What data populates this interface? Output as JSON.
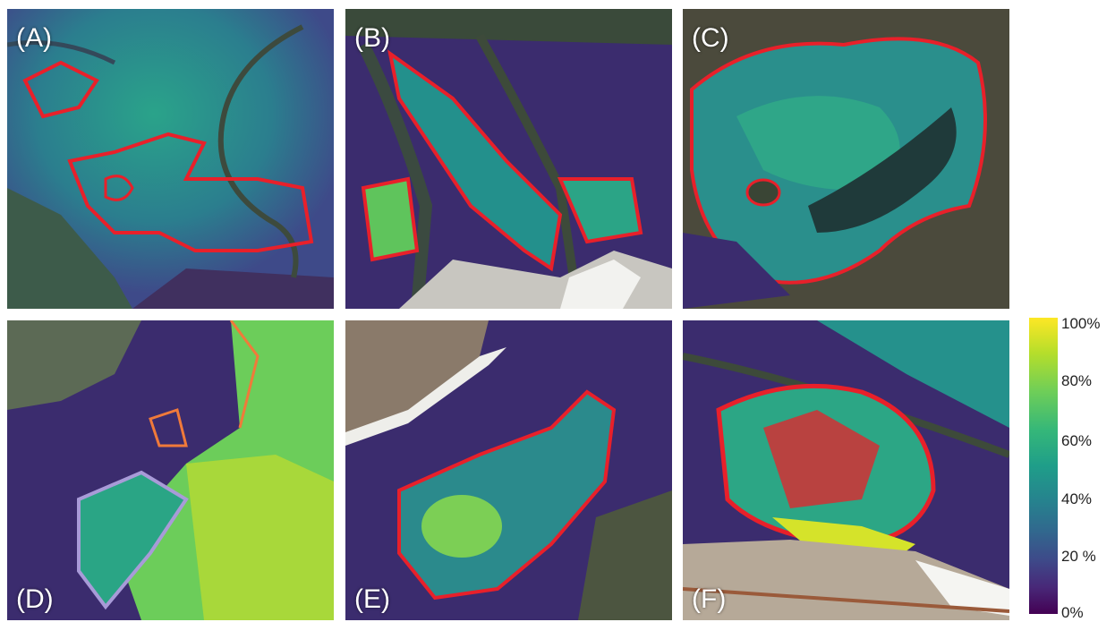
{
  "panels": [
    {
      "label": "(A)"
    },
    {
      "label": "(B)"
    },
    {
      "label": "(C)"
    },
    {
      "label": "(D)"
    },
    {
      "label": "(E)"
    },
    {
      "label": "(F)"
    }
  ],
  "colorbar": {
    "ticks": [
      "100%",
      "80%",
      "60%",
      "40%",
      "20 %",
      "0%"
    ],
    "colormap": "viridis",
    "colors": [
      "#fde725",
      "#6ece58",
      "#35b779",
      "#1f9e89",
      "#31688e",
      "#482878",
      "#440154"
    ]
  },
  "outline_colors": {
    "red": "#e8202a",
    "orange": "#f07a3a",
    "lavender": "#a89bd8"
  }
}
